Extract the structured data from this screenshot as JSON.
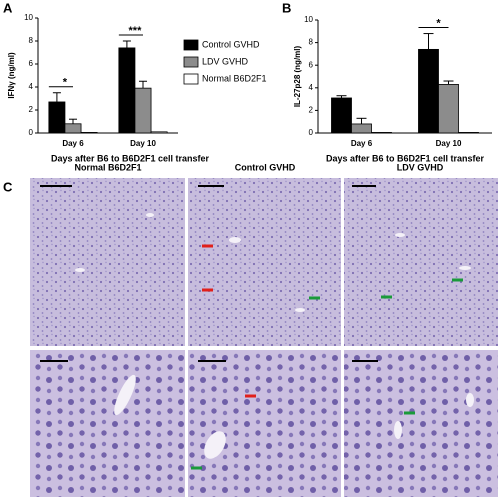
{
  "chart_data": [
    {
      "type": "bar",
      "panel": "A",
      "y_label": "IFNγ (ng/ml)",
      "x_label": "Days after B6 to B6D2F1 cell transfer",
      "categories": [
        "Day 6",
        "Day 10"
      ],
      "ylim": [
        0,
        10
      ],
      "yticks": [
        0,
        2,
        4,
        6,
        8,
        10
      ],
      "legend": "right",
      "series": [
        {
          "name": "Control GVHD",
          "color": "#000000",
          "values": [
            2.7,
            7.4
          ],
          "errors": [
            0.8,
            0.6
          ]
        },
        {
          "name": "LDV GVHD",
          "color": "#8c8c8c",
          "values": [
            0.8,
            3.9
          ],
          "errors": [
            0.4,
            0.6
          ]
        },
        {
          "name": "Normal B6D2F1",
          "color": "#ffffff",
          "values": [
            0.05,
            0.1
          ]
        }
      ],
      "significance": [
        {
          "label": "*",
          "category": 0
        },
        {
          "label": "***",
          "category": 1
        }
      ]
    },
    {
      "type": "bar",
      "panel": "B",
      "y_label": "IL-27p28 (ng/ml)",
      "x_label": "Days after B6 to B6D2F1 cell transfer",
      "categories": [
        "Day 6",
        "Day 10"
      ],
      "ylim": [
        0,
        10
      ],
      "yticks": [
        0,
        2,
        4,
        6,
        8,
        10
      ],
      "series": [
        {
          "color": "#000000",
          "values": [
            3.1,
            7.4
          ],
          "errors": [
            0.2,
            1.4
          ]
        },
        {
          "color": "#8c8c8c",
          "values": [
            0.8,
            4.3
          ],
          "errors": [
            0.5,
            0.3
          ]
        },
        {
          "color": "#ffffff",
          "values": [
            0.05,
            0.05
          ]
        }
      ],
      "significance": [
        {
          "label": "*",
          "category": 1
        }
      ]
    }
  ],
  "panel_c": {
    "panel": "C",
    "titles": [
      "Normal B6D2F1",
      "Control GVHD",
      "LDV GVHD"
    ]
  }
}
